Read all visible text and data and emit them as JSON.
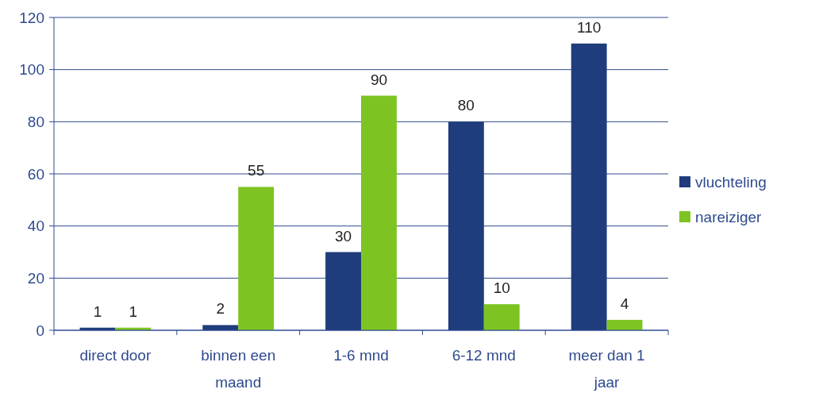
{
  "chart_data": {
    "type": "bar",
    "categories": [
      "direct door",
      "binnen een maand",
      "1-6 mnd",
      "6-12 mnd",
      "meer dan 1 jaar"
    ],
    "series": [
      {
        "name": "vluchteling",
        "color": "#1f3d7c",
        "values": [
          1,
          2,
          30,
          80,
          110
        ]
      },
      {
        "name": "nareiziger",
        "color": "#7dc422",
        "values": [
          1,
          55,
          90,
          10,
          4
        ]
      }
    ],
    "ylim": [
      0,
      120
    ],
    "yticks": [
      0,
      20,
      40,
      60,
      80,
      100,
      120
    ],
    "grid": "y",
    "legend": "right",
    "data_labels": true
  }
}
